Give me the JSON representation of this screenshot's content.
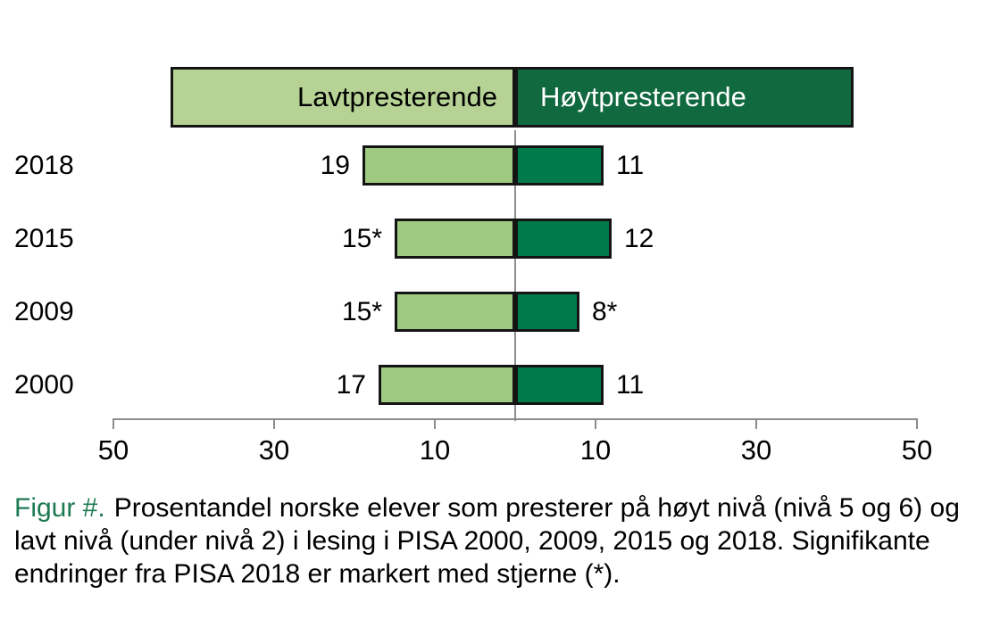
{
  "legend": {
    "left_label": "Lavtpresterende",
    "right_label": "Høytpresterende"
  },
  "caption": {
    "prefix": "Figur #.",
    "body": "Prosentandel norske elever som presterer på høyt nivå (nivå 5 og 6) og lavt nivå (under nivå 2) i lesing i PISA 2000, 2009, 2015 og 2018. Signifikante endringer fra PISA 2018 er markert med stjerne (*)."
  },
  "chart_data": {
    "type": "bar",
    "orientation": "horizontal-diverging",
    "categories": [
      "2018",
      "2015",
      "2009",
      "2000"
    ],
    "series": [
      {
        "name": "Lavtpresterende",
        "side": "left",
        "values": [
          19,
          15,
          15,
          17
        ],
        "data_labels": [
          "19",
          "15*",
          "15*",
          "17"
        ]
      },
      {
        "name": "Høytpresterende",
        "side": "right",
        "values": [
          11,
          12,
          8,
          11
        ],
        "data_labels": [
          "11",
          "12",
          "8*",
          "11"
        ]
      }
    ],
    "x_axis": {
      "lim": [
        -50,
        50
      ],
      "tick_positions": [
        -50,
        -30,
        -10,
        10,
        30,
        50
      ],
      "tick_labels": [
        "50",
        "30",
        "10",
        "10",
        "30",
        "50"
      ],
      "grid": false
    },
    "legend_position": "top",
    "zero_baseline": true
  },
  "colors": {
    "legend_light_green": "#b6d295",
    "legend_dark_green": "#11693f",
    "bar_light_green": "#9ecb7f",
    "bar_dark_green": "#007a4b",
    "border_black": "#141414",
    "axis_gray": "#8c8c8c",
    "caption_green": "#1e7a52",
    "text_black": "#000000"
  }
}
